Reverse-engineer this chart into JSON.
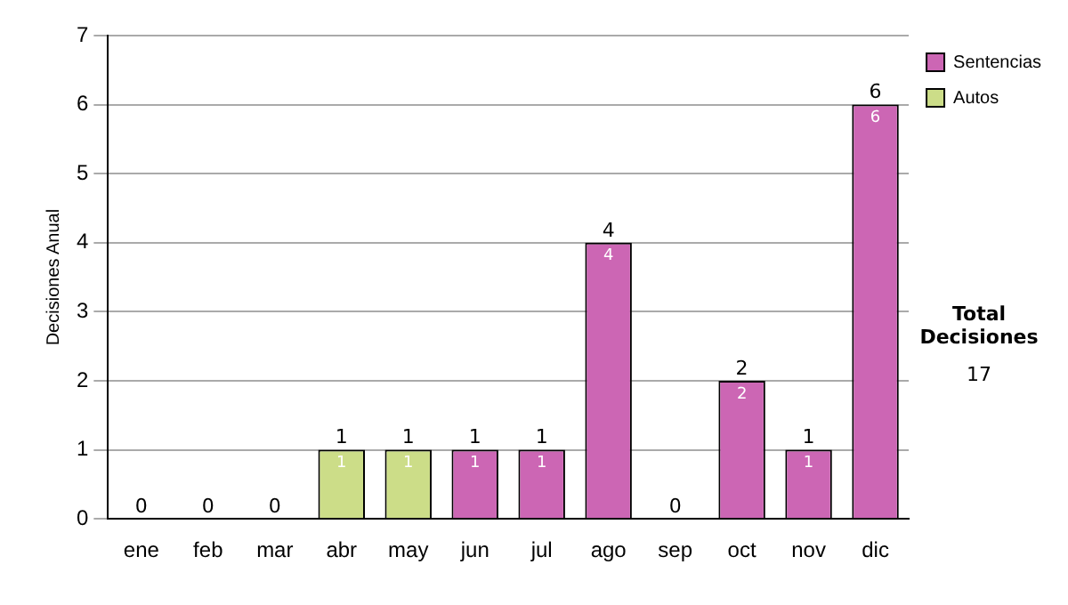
{
  "chart_data": {
    "type": "bar",
    "stacked": true,
    "ylabel": "Decisiones Anual",
    "categories": [
      "ene",
      "feb",
      "mar",
      "abr",
      "may",
      "jun",
      "jul",
      "ago",
      "sep",
      "oct",
      "nov",
      "dic"
    ],
    "series": [
      {
        "name": "Sentencias",
        "color": "#cc66b4",
        "values": [
          0,
          0,
          0,
          0,
          0,
          1,
          1,
          4,
          0,
          2,
          1,
          6
        ],
        "value_labels": [
          null,
          null,
          null,
          null,
          null,
          "1",
          "1",
          "4",
          null,
          "2",
          "1",
          "6"
        ]
      },
      {
        "name": "Autos",
        "color": "#ccdd88",
        "values": [
          0,
          0,
          0,
          1,
          1,
          0,
          0,
          0,
          0,
          0,
          0,
          0
        ],
        "value_labels": [
          null,
          null,
          null,
          "1",
          "1",
          null,
          null,
          null,
          null,
          null,
          null,
          null
        ]
      }
    ],
    "totals": [
      "0",
      "0",
      "0",
      "1",
      "1",
      "1",
      "1",
      "4",
      "0",
      "2",
      "1",
      "6"
    ],
    "ylim": [
      0,
      7
    ],
    "yticks": [
      0,
      1,
      2,
      3,
      4,
      5,
      6,
      7
    ],
    "grid": "y",
    "legend": "right",
    "annotations": [
      "Total Decisiones",
      "17"
    ]
  }
}
